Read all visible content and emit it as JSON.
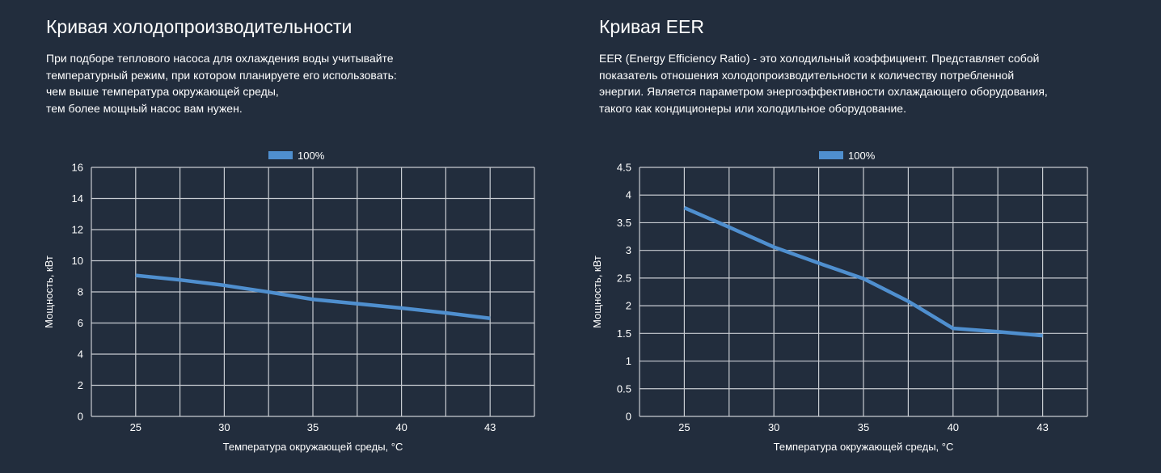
{
  "left": {
    "title": "Кривая холодопроизводительности",
    "description": "При подборе теплового насоса для охлаждения воды учитывайте\nтемпературный режим, при котором планируете его использовать:\nчем выше температура окружающей среды,\nтем более мощный насос вам нужен."
  },
  "right": {
    "title": "Кривая EER",
    "description": "EER (Energy Efficiency Ratio) - это холодильный коэффициент. Представляет собой\nпоказатель отношения холодопроизводительности к количеству потребленной\nэнергии. Является параметром энергоэффективности охлаждающего оборудования,\nтакого как кондиционеры или холодильное оборудование."
  },
  "colors": {
    "background": "#222d3d",
    "series": "#4f8fcf",
    "grid": "#c8ccd2"
  },
  "chart_data": [
    {
      "type": "line",
      "title": "",
      "xlabel": "Температура окружающей среды, °C",
      "ylabel": "Мощность, кВт",
      "categories": [
        "25",
        "",
        "30",
        "",
        "35",
        "",
        "40",
        "",
        "43"
      ],
      "yticks": [
        "0",
        "2",
        "4",
        "6",
        "8",
        "10",
        "12",
        "14",
        "16"
      ],
      "ylim": [
        0,
        16
      ],
      "grid": true,
      "legend": "top-center",
      "series": [
        {
          "name": "100%",
          "values": [
            9.06,
            8.77,
            8.42,
            7.99,
            7.52,
            7.24,
            6.96,
            6.65,
            6.3
          ]
        }
      ]
    },
    {
      "type": "line",
      "title": "",
      "xlabel": "Температура окружающей среды, °C",
      "ylabel": "Мощность, кВт",
      "categories": [
        "25",
        "",
        "30",
        "",
        "35",
        "",
        "40",
        "",
        "43"
      ],
      "yticks": [
        "0",
        "0.5",
        "1",
        "1.5",
        "2",
        "2.5",
        "3",
        "3.5",
        "4",
        "4.5"
      ],
      "ylim": [
        0,
        4.5
      ],
      "grid": true,
      "legend": "top-center",
      "series": [
        {
          "name": "100%",
          "values": [
            3.77,
            3.42,
            3.06,
            2.77,
            2.49,
            2.08,
            1.59,
            1.53,
            1.46
          ]
        }
      ]
    }
  ]
}
